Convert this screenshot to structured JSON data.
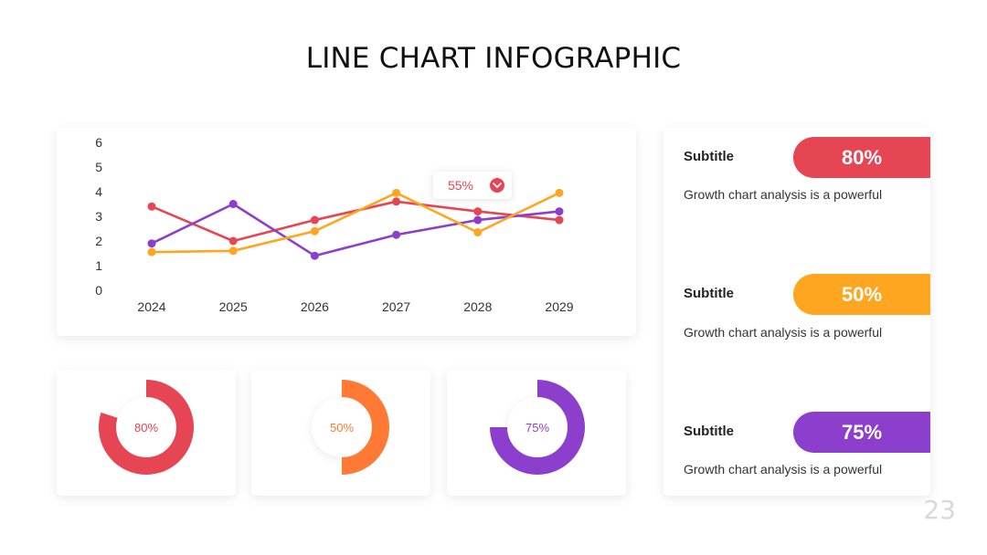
{
  "slide": {
    "title": "LINE CHART INFOGRAPHIC",
    "page_number": "23"
  },
  "colors": {
    "red": "#e64553",
    "orange": "#ffa621",
    "purple": "#8c3fcc",
    "deep_orange": "#ff7a35"
  },
  "chart_data": [
    {
      "type": "line",
      "title": "",
      "categories": [
        "2024",
        "2025",
        "2026",
        "2027",
        "2028",
        "2029"
      ],
      "y_ticks": [
        "0",
        "1",
        "2",
        "3",
        "4",
        "5",
        "6"
      ],
      "ylim": [
        0,
        6
      ],
      "grid": false,
      "series": [
        {
          "color": "#e64553",
          "values": [
            3.4,
            2.0,
            2.85,
            3.6,
            3.2,
            2.85
          ]
        },
        {
          "color": "#8c3fcc",
          "values": [
            1.9,
            3.5,
            1.4,
            2.25,
            2.85,
            3.2
          ]
        },
        {
          "color": "#ffa621",
          "values": [
            1.55,
            1.6,
            2.4,
            3.95,
            2.35,
            3.95
          ]
        }
      ],
      "annotation": {
        "label": "55%",
        "color": "#e64553"
      }
    },
    {
      "type": "pie",
      "donuts": [
        {
          "label": "80%",
          "value": 80,
          "color": "#e64553"
        },
        {
          "label": "50%",
          "value": 50,
          "color": "#ff7a35"
        },
        {
          "label": "75%",
          "value": 75,
          "color": "#8c3fcc"
        }
      ]
    }
  ],
  "stats": [
    {
      "subtitle": "Subtitle",
      "value": "80%",
      "description": "Growth chart analysis is a powerful",
      "color": "#e64553"
    },
    {
      "subtitle": "Subtitle",
      "value": "50%",
      "description": "Growth chart analysis is a powerful",
      "color": "#ffa621"
    },
    {
      "subtitle": "Subtitle",
      "value": "75%",
      "description": "Growth chart analysis is a powerful",
      "color": "#8c3fcc"
    }
  ]
}
